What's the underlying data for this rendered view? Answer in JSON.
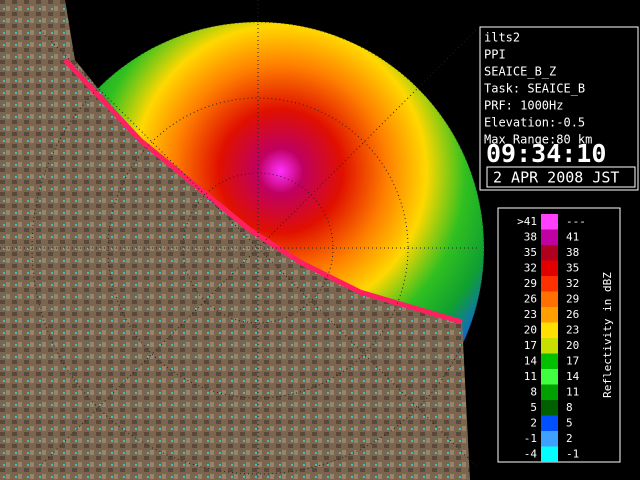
{
  "info": {
    "lines": [
      "ilts2",
      "PPI",
      "SEAICE_B_Z",
      "Task: SEAICE_B",
      "PRF: 1000Hz",
      "Elevation:-0.5",
      "Max Range:80 km"
    ],
    "time": "09:34:10",
    "date": "2 APR 2008 JST"
  },
  "legend": {
    "title": "Reflectivity in dBZ",
    "rows": [
      {
        "low": ">41",
        "high": "---",
        "color": "#ff40ff"
      },
      {
        "low": "38",
        "high": "41",
        "color": "#c000a0"
      },
      {
        "low": "35",
        "high": "38",
        "color": "#b00020"
      },
      {
        "low": "32",
        "high": "35",
        "color": "#e00000"
      },
      {
        "low": "29",
        "high": "32",
        "color": "#ff3000"
      },
      {
        "low": "26",
        "high": "29",
        "color": "#ff7000"
      },
      {
        "low": "23",
        "high": "26",
        "color": "#ffa000"
      },
      {
        "low": "20",
        "high": "23",
        "color": "#ffe000"
      },
      {
        "low": "17",
        "high": "20",
        "color": "#c8e000"
      },
      {
        "low": "14",
        "high": "17",
        "color": "#00c000"
      },
      {
        "low": "11",
        "high": "14",
        "color": "#40ff40"
      },
      {
        "low": "8",
        "high": "11",
        "color": "#00a000"
      },
      {
        "low": "5",
        "high": "8",
        "color": "#006000"
      },
      {
        "low": "2",
        "high": "5",
        "color": "#0050ff"
      },
      {
        "low": "-1",
        "high": "2",
        "color": "#40a0ff"
      },
      {
        "low": "-4",
        "high": "-1",
        "color": "#00ffff"
      }
    ]
  }
}
